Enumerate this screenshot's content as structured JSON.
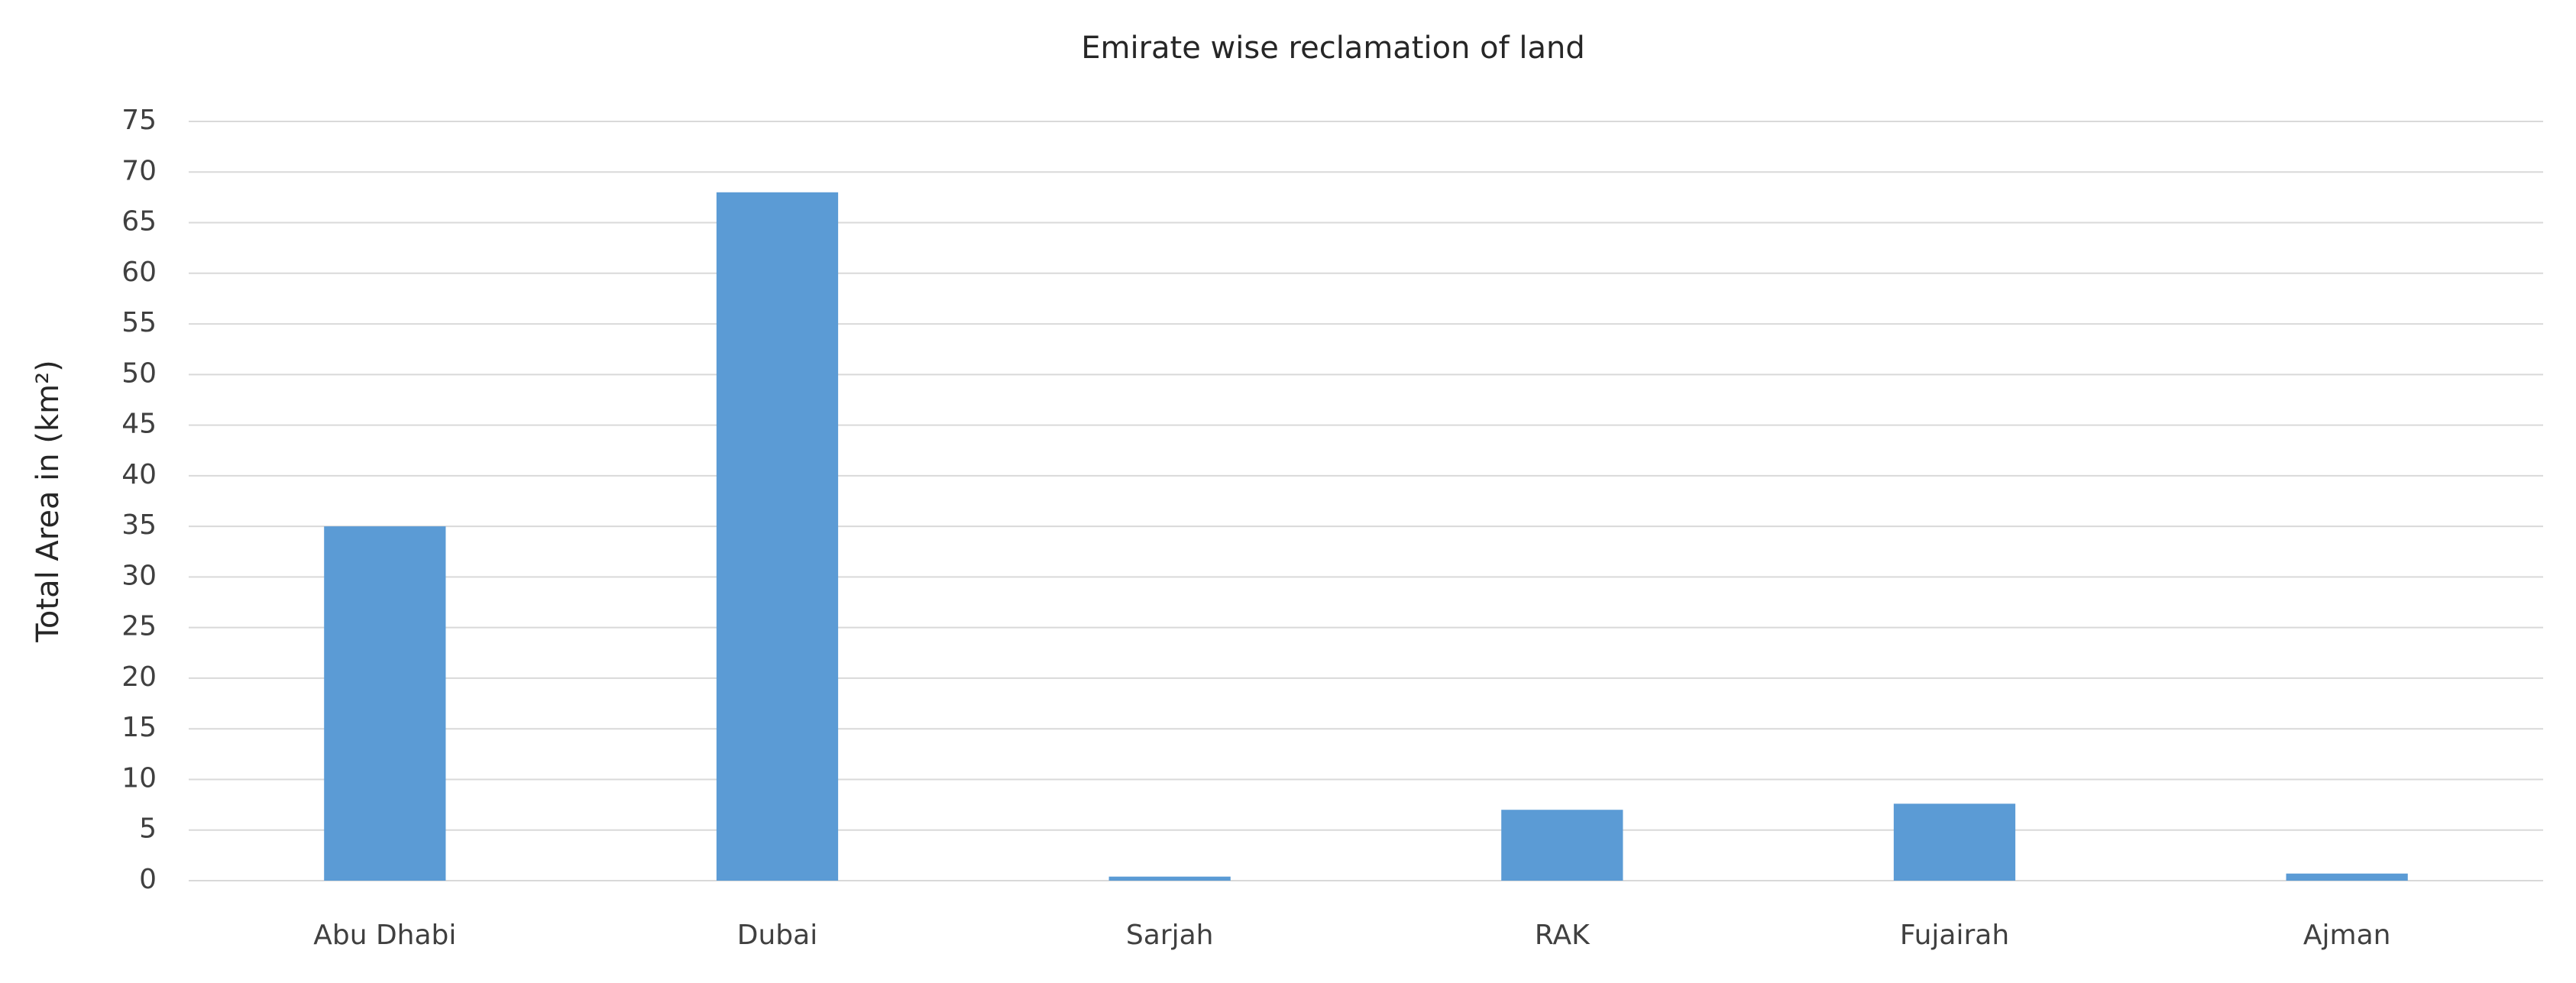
{
  "chart_data": {
    "type": "bar",
    "title": "Emirate wise reclamation of land",
    "y_label": "Total Area in (km²)",
    "categories": [
      "Abu Dhabi",
      "Dubai",
      "Sarjah",
      "RAK",
      "Fujairah",
      "Ajman"
    ],
    "values": [
      35,
      68,
      0.4,
      7,
      7.6,
      0.7
    ],
    "color": "#5b9bd5",
    "ylim": [
      0,
      75
    ],
    "yticks": [
      0,
      5,
      10,
      15,
      20,
      25,
      30,
      35,
      40,
      45,
      50,
      55,
      60,
      65,
      70,
      75
    ],
    "grid": true
  }
}
